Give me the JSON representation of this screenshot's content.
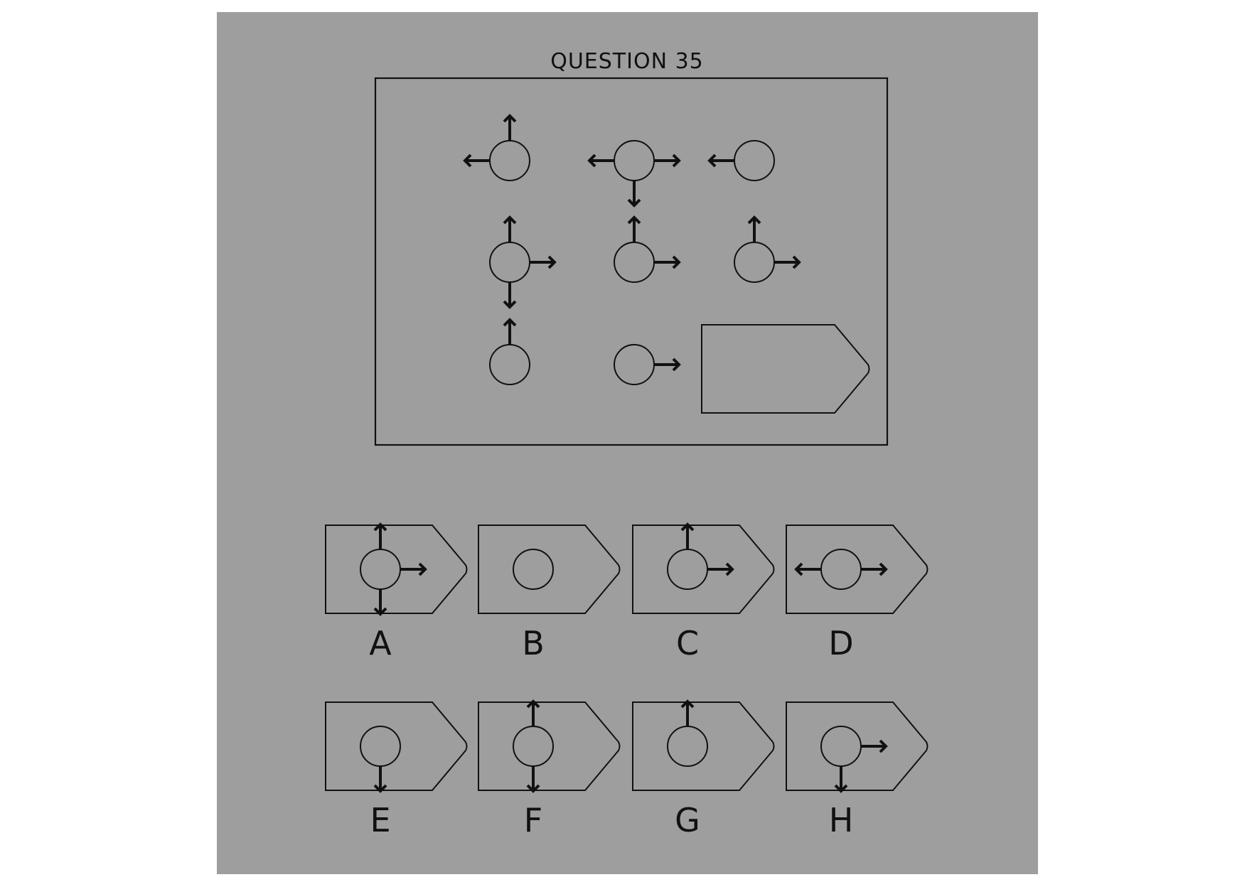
{
  "question": {
    "title": "QUESTION 35"
  },
  "puzzle": {
    "cells": [
      {
        "id": "r1c1",
        "arrows": [
          "up",
          "left"
        ]
      },
      {
        "id": "r1c2",
        "arrows": [
          "left",
          "right",
          "down"
        ]
      },
      {
        "id": "r1c3",
        "arrows": [
          "left"
        ]
      },
      {
        "id": "r2c1",
        "arrows": [
          "up",
          "right",
          "down"
        ]
      },
      {
        "id": "r2c2",
        "arrows": [
          "up",
          "right"
        ]
      },
      {
        "id": "r2c3",
        "arrows": [
          "up",
          "right"
        ]
      },
      {
        "id": "r3c1",
        "arrows": [
          "up"
        ]
      },
      {
        "id": "r3c2",
        "arrows": [
          "right"
        ]
      }
    ],
    "missing_cell": "r3c3"
  },
  "options": [
    {
      "label": "A",
      "arrows": [
        "up",
        "right",
        "down"
      ]
    },
    {
      "label": "B",
      "arrows": []
    },
    {
      "label": "C",
      "arrows": [
        "up",
        "right"
      ]
    },
    {
      "label": "D",
      "arrows": [
        "left",
        "right"
      ]
    },
    {
      "label": "E",
      "arrows": [
        "down"
      ]
    },
    {
      "label": "F",
      "arrows": [
        "up",
        "down"
      ]
    },
    {
      "label": "G",
      "arrows": [
        "up"
      ]
    },
    {
      "label": "H",
      "arrows": [
        "right",
        "down"
      ]
    }
  ],
  "icons": {
    "cell_symbol": "circle-with-arrows-icon",
    "answer_slot": "pentagon-arrow-shape-icon"
  },
  "colors": {
    "panel_background": "#9e9e9e",
    "ink": "#111111",
    "page_background": "#ffffff"
  }
}
